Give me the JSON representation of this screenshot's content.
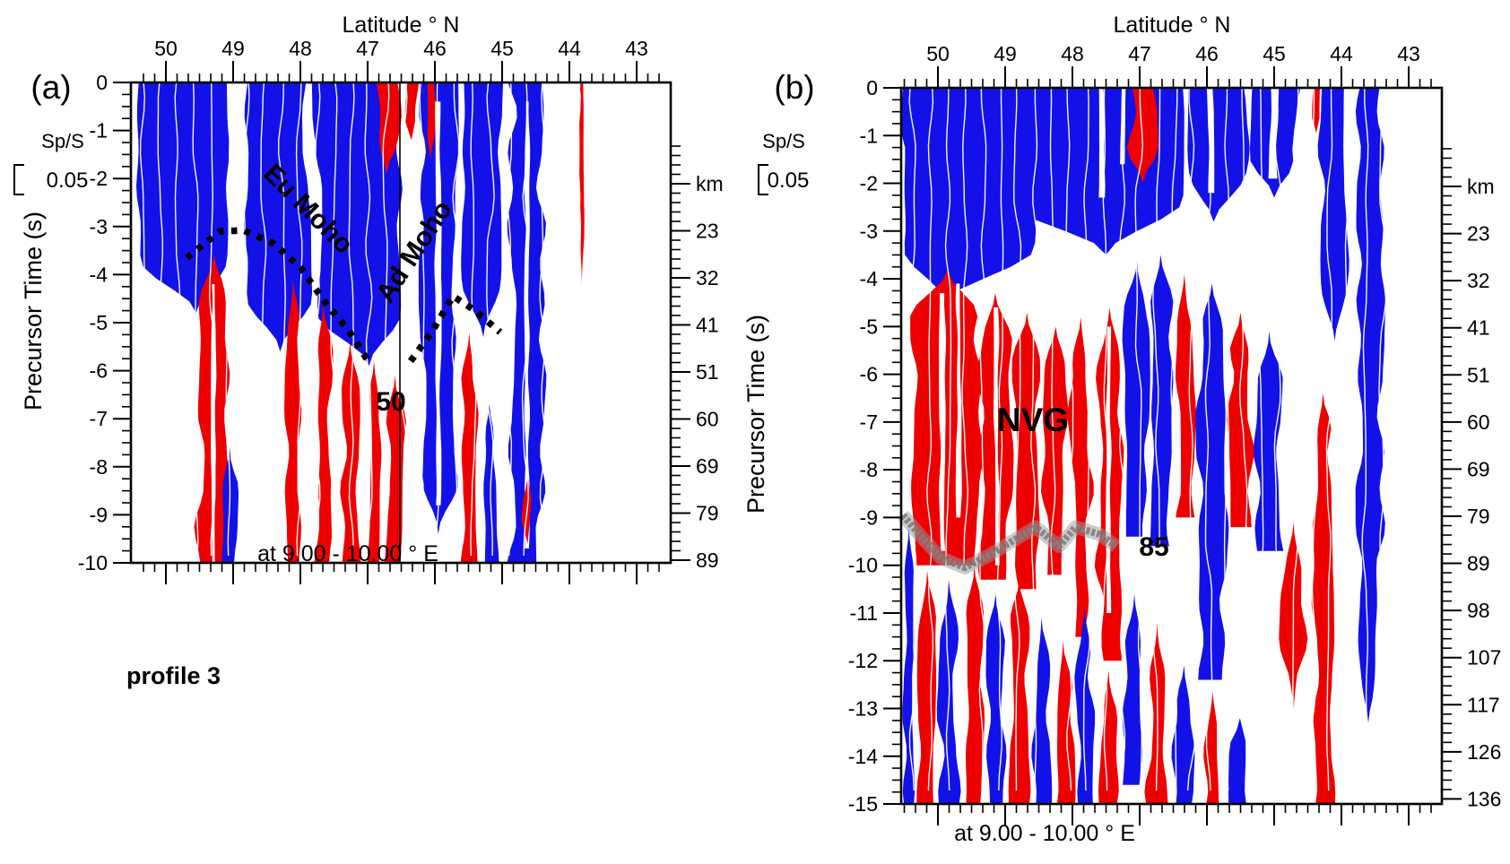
{
  "figure": {
    "panels": {
      "a": {
        "tag": "(a)",
        "top_axis_title": "Latitude ° N",
        "left_axis_title": "Precursor Time (s)",
        "right_axis_unit": "km",
        "bottom_caption": "at 9.00 - 10.00 ° E",
        "profile_label": "profile 3",
        "scale": {
          "name": "Sp/S",
          "value": "0.05"
        },
        "annotations": {
          "eu_moho": "Eu Moho",
          "ad_moho": "Ad Moho",
          "pick": "50"
        }
      },
      "b": {
        "tag": "(b)",
        "top_axis_title": "Latitude ° N",
        "left_axis_title": "Precursor Time (s)",
        "right_axis_unit": "km",
        "bottom_caption": "at 9.00 - 10.00 ° E",
        "scale": {
          "name": "Sp/S",
          "value": "0.05"
        },
        "annotations": {
          "nvg": "NVG",
          "pick": "85"
        }
      }
    }
  },
  "colors": {
    "positive_fill": "#1212e8",
    "negative_fill": "#ee0000",
    "background": "#ffffff",
    "axis": "#000000",
    "eu_moho_text": "#ffffff",
    "ad_moho_text": "#1edfb4",
    "pick_dot": "#000000",
    "nvg_band_gray": "#808080"
  },
  "chart_data": [
    {
      "type": "area",
      "panel": "a",
      "title": "Latitude ° N",
      "xlabel": "at 9.00 - 10.00 ° E",
      "ylabel": "Precursor Time (s)",
      "x_range": [
        50.5,
        42.5
      ],
      "y_range": [
        0,
        -10
      ],
      "x_ticks": [
        50,
        49,
        48,
        47,
        46,
        45,
        44,
        43
      ],
      "y_ticks": [
        0,
        -1,
        -2,
        -3,
        -4,
        -5,
        -6,
        -7,
        -8,
        -9,
        -10
      ],
      "right_axis": {
        "unit": "km",
        "tick_labels": [
          "km",
          "23",
          "32",
          "41",
          "51",
          "60",
          "69",
          "79",
          "89"
        ]
      },
      "amplitude_scale": {
        "label": "Sp/S",
        "value": 0.05
      },
      "picks": [
        {
          "name": "Eu Moho",
          "style": "dotted",
          "points": [
            [
              49.69,
              -3.65
            ],
            [
              49.2,
              -3.1
            ],
            [
              48.84,
              -3.08
            ],
            [
              48.4,
              -3.35
            ],
            [
              48.0,
              -3.85
            ],
            [
              47.62,
              -4.6
            ],
            [
              47.29,
              -5.15
            ],
            [
              46.97,
              -5.85
            ]
          ]
        },
        {
          "name": "Ad Moho",
          "style": "dotted",
          "points": [
            [
              46.36,
              -5.8
            ],
            [
              46.05,
              -5.2
            ],
            [
              45.73,
              -4.45
            ],
            [
              45.4,
              -4.75
            ],
            [
              45.03,
              -5.2
            ]
          ]
        },
        {
          "name": "50",
          "style": "vertical-line",
          "lat": 46.52
        }
      ],
      "polarity_bands": [
        [
          50.45,
          49.05,
          0,
          -4.8,
          "+",
          "b",
          49.55
        ],
        [
          49.5,
          49.07,
          -3.6,
          -10,
          "-",
          "t"
        ],
        [
          49.32,
          49.26,
          -4.2,
          -10,
          "0",
          ""
        ],
        [
          49.14,
          48.96,
          -7.6,
          -10,
          "+",
          "t"
        ],
        [
          48.78,
          47.9,
          0,
          -5.6,
          "+",
          "b",
          48.3
        ],
        [
          48.2,
          48.02,
          -4.1,
          -10,
          "-",
          "t"
        ],
        [
          47.75,
          46.52,
          0,
          -5.9,
          "+",
          "b",
          46.98
        ],
        [
          47.76,
          47.56,
          -4.6,
          -10,
          "-",
          "t"
        ],
        [
          47.36,
          47.16,
          -5.4,
          -10,
          "-",
          "t"
        ],
        [
          46.99,
          46.82,
          -5.8,
          -10,
          "-",
          "t"
        ],
        [
          46.7,
          46.48,
          -6.1,
          -10,
          "-",
          "t"
        ],
        [
          46.88,
          46.56,
          0,
          -1.9,
          "-",
          "b"
        ],
        [
          46.44,
          46.26,
          0,
          -1.2,
          "-",
          "b"
        ],
        [
          46.2,
          45.7,
          0,
          -9.4,
          "+",
          "b",
          45.95
        ],
        [
          46.13,
          46.0,
          0,
          -1.6,
          "-",
          "b"
        ],
        [
          45.99,
          45.92,
          -0.4,
          -8.8,
          "0",
          ""
        ],
        [
          45.55,
          45.05,
          0,
          -5.3,
          "+",
          "b",
          45.28
        ],
        [
          45.58,
          45.4,
          -5.2,
          -10,
          "-",
          "t"
        ],
        [
          45.3,
          45.08,
          -6.7,
          -10,
          "+",
          "t"
        ],
        [
          44.85,
          44.42,
          0,
          -10,
          "+",
          ""
        ],
        [
          44.66,
          44.6,
          -0.4,
          -9.7,
          "0",
          ""
        ],
        [
          44.68,
          44.56,
          -8.2,
          -9.6,
          "-",
          "tb"
        ],
        [
          43.84,
          43.79,
          0,
          -4.2,
          "-",
          "b"
        ]
      ]
    },
    {
      "type": "area",
      "panel": "b",
      "title": "Latitude ° N",
      "xlabel": "at 9.00 - 10.00 ° E",
      "ylabel": "Precursor Time (s)",
      "x_range": [
        50.5,
        42.5
      ],
      "y_range": [
        0,
        -15
      ],
      "x_ticks": [
        50,
        49,
        48,
        47,
        46,
        45,
        44,
        43
      ],
      "y_ticks": [
        0,
        -1,
        -2,
        -3,
        -4,
        -5,
        -6,
        -7,
        -8,
        -9,
        -10,
        -11,
        -12,
        -13,
        -14,
        -15
      ],
      "right_axis": {
        "unit": "km",
        "tick_labels": [
          "km",
          "23",
          "32",
          "41",
          "51",
          "60",
          "69",
          "79",
          "89",
          "98",
          "107",
          "117",
          "126",
          "136"
        ]
      },
      "amplitude_scale": {
        "label": "Sp/S",
        "value": 0.05
      },
      "region_label": {
        "name": "NVG",
        "lat": 48.6,
        "t": -6.95
      },
      "picks": [
        {
          "name": "85",
          "style": "gray-band",
          "points": [
            [
              50.55,
              -8.95
            ],
            [
              50.25,
              -9.4
            ],
            [
              49.95,
              -9.85
            ],
            [
              49.6,
              -10.05
            ],
            [
              49.25,
              -9.8
            ],
            [
              48.9,
              -9.5
            ],
            [
              48.55,
              -9.2
            ],
            [
              48.2,
              -9.6
            ],
            [
              47.95,
              -9.2
            ],
            [
              47.6,
              -9.35
            ],
            [
              47.35,
              -9.6
            ]
          ]
        }
      ],
      "polarity_bands": [
        [
          50.55,
          48.5,
          0,
          -4.5,
          "+",
          "b",
          49.9
        ],
        [
          48.9,
          46.35,
          0,
          -3.5,
          "+",
          "b",
          47.5
        ],
        [
          47.62,
          47.53,
          0,
          -2.3,
          "0",
          ""
        ],
        [
          47.28,
          47.22,
          0,
          -1.6,
          "0",
          ""
        ],
        [
          47.12,
          46.78,
          0,
          -2.0,
          "-",
          "b"
        ],
        [
          46.3,
          45.4,
          0,
          -2.8,
          "+",
          "b",
          45.9
        ],
        [
          45.99,
          45.91,
          0,
          -2.2,
          "0",
          ""
        ],
        [
          45.35,
          44.65,
          0,
          -2.3,
          "+",
          "b",
          45.0
        ],
        [
          45.06,
          44.96,
          0,
          -1.9,
          "0",
          ""
        ],
        [
          44.42,
          44.33,
          0,
          -0.95,
          "-",
          "b"
        ],
        [
          44.28,
          43.9,
          0,
          -5.3,
          "+",
          "b",
          44.1
        ],
        [
          43.75,
          43.42,
          0,
          -13.3,
          "+",
          "b",
          43.6
        ],
        [
          50.35,
          49.4,
          -3.8,
          -10.0,
          "-",
          "t",
          49.85
        ],
        [
          49.97,
          49.9,
          -4.3,
          -9.7,
          "0",
          ""
        ],
        [
          49.72,
          49.66,
          -4.1,
          -9.0,
          "0",
          ""
        ],
        [
          49.35,
          48.95,
          -4.3,
          -10.3,
          "-",
          "t"
        ],
        [
          49.16,
          49.1,
          -4.6,
          -10,
          "0",
          ""
        ],
        [
          48.85,
          48.5,
          -4.7,
          -10.5,
          "-",
          "t"
        ],
        [
          48.4,
          48.1,
          -5.0,
          -10.2,
          "-",
          "t"
        ],
        [
          48.0,
          47.75,
          -4.8,
          -11.5,
          "-",
          "t"
        ],
        [
          47.6,
          47.3,
          -4.6,
          -12.0,
          "-",
          "t"
        ],
        [
          47.49,
          47.43,
          -5.0,
          -11.0,
          "0",
          ""
        ],
        [
          47.18,
          46.9,
          -3.6,
          -9.4,
          "+",
          "t"
        ],
        [
          46.83,
          46.55,
          -3.5,
          -9.6,
          "+",
          "t"
        ],
        [
          46.45,
          46.22,
          -3.9,
          -9.0,
          "-",
          "t"
        ],
        [
          46.1,
          45.75,
          -4.1,
          -12.4,
          "+",
          "t"
        ],
        [
          45.65,
          45.35,
          -4.7,
          -9.2,
          "-",
          "t"
        ],
        [
          45.25,
          44.9,
          -5.1,
          -9.7,
          "+",
          "t"
        ],
        [
          44.85,
          44.57,
          -9.1,
          -13.0,
          "-",
          "tb"
        ],
        [
          44.4,
          44.15,
          -6.4,
          -15,
          "-",
          "t"
        ],
        [
          50.5,
          50.36,
          -9.2,
          -15,
          "+",
          "t"
        ],
        [
          50.26,
          50.06,
          -10.1,
          -15,
          "-",
          "t"
        ],
        [
          49.96,
          49.72,
          -10.3,
          -15,
          "+",
          "t"
        ],
        [
          49.56,
          49.36,
          -10.0,
          -15,
          "-",
          "t"
        ],
        [
          49.26,
          49.02,
          -10.6,
          -15,
          "+",
          "t"
        ],
        [
          48.92,
          48.66,
          -10.3,
          -15,
          "-",
          "t"
        ],
        [
          48.56,
          48.36,
          -11.1,
          -15,
          "+",
          "t"
        ],
        [
          48.26,
          48.02,
          -11.6,
          -15,
          "-",
          "t"
        ],
        [
          47.92,
          47.72,
          -10.9,
          -15,
          "+",
          "t"
        ],
        [
          47.56,
          47.36,
          -12.2,
          -15,
          "-",
          "t"
        ],
        [
          47.2,
          46.96,
          -10.6,
          -14.6,
          "+",
          "t"
        ],
        [
          46.86,
          46.62,
          -11.2,
          -15,
          "-",
          "t"
        ],
        [
          46.46,
          46.22,
          -12.1,
          -15,
          "+",
          "t"
        ],
        [
          46.02,
          45.82,
          -12.6,
          -15,
          "-",
          "t"
        ],
        [
          45.62,
          45.4,
          -13.2,
          -15,
          "+",
          "t"
        ]
      ]
    }
  ]
}
